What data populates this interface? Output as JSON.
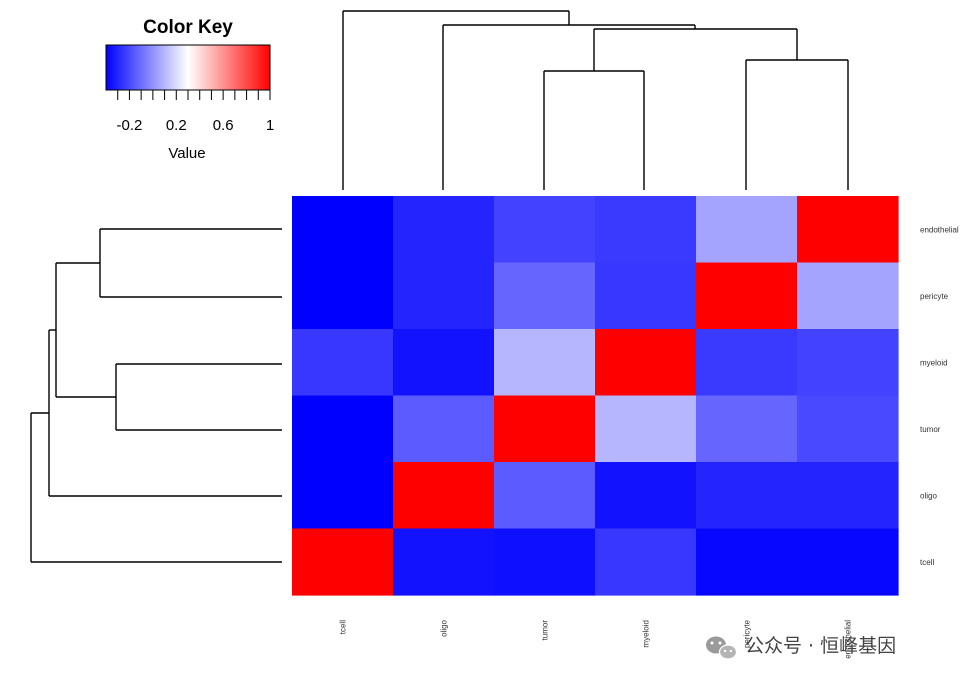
{
  "chart_data": {
    "type": "heatmap",
    "row_labels": [
      "endothelial",
      "pericyte",
      "myeloid",
      "tumor",
      "oligo",
      "tcell"
    ],
    "col_labels": [
      "tcell",
      "oligo",
      "tumor",
      "myeloid",
      "pericyte",
      "endothelial"
    ],
    "values": [
      [
        -0.4,
        -0.3,
        -0.22,
        -0.24,
        0.05,
        1.0
      ],
      [
        -0.4,
        -0.3,
        -0.12,
        -0.25,
        1.0,
        0.05
      ],
      [
        -0.25,
        -0.35,
        0.1,
        1.0,
        -0.24,
        -0.22
      ],
      [
        -0.4,
        -0.15,
        1.0,
        0.1,
        -0.12,
        -0.2
      ],
      [
        -0.4,
        1.0,
        -0.15,
        -0.35,
        -0.3,
        -0.3
      ],
      [
        1.0,
        -0.35,
        -0.36,
        -0.25,
        -0.38,
        -0.38
      ]
    ],
    "color_scale": {
      "low": "#0000ff",
      "mid": "#ffffff",
      "high": "#ff0000",
      "min": -0.4,
      "max": 1.0
    },
    "legend": {
      "title": "Color Key",
      "xlabel": "Value",
      "tick_labels": [
        "-0.2",
        "0.2",
        "0.6",
        "1"
      ],
      "tick_values": [
        -0.2,
        0.2,
        0.6,
        1.0
      ],
      "placement": "top-left"
    },
    "column_dendrogram": true,
    "row_dendrogram": true
  },
  "watermark": {
    "icon": "wechat-icon",
    "text": "公众号 · 恒峰基因"
  }
}
